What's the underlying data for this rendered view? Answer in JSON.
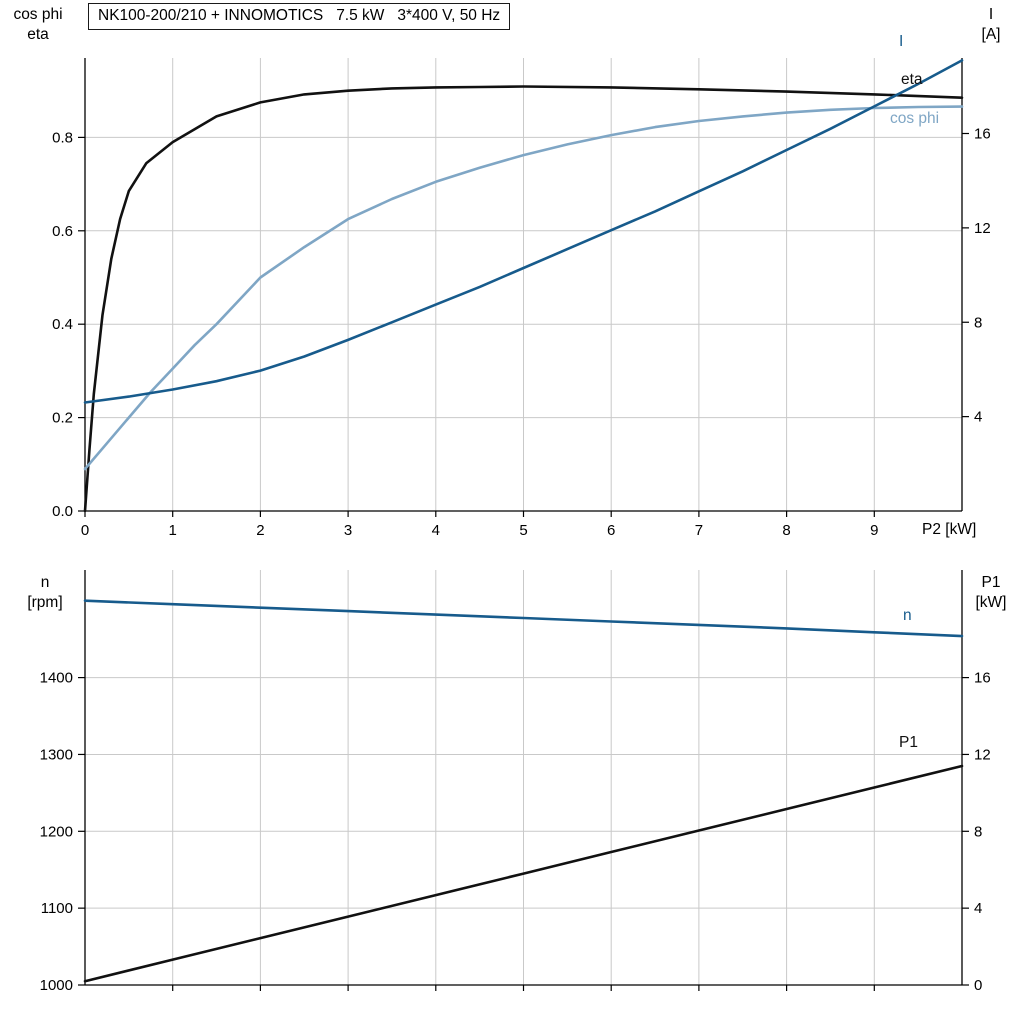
{
  "title_box": {
    "text": "NK100-200/210 + INNOMOTICS   7.5 kW   3*400 V, 50 Hz"
  },
  "colors": {
    "eta": "#111111",
    "cos_phi": "#7fa6c5",
    "current": "#175b8c",
    "speed": "#175b8c",
    "p1": "#111111",
    "grid": "#c9c9c9",
    "axis": "#000000"
  },
  "axis_labels": {
    "top_left": [
      "cos phi",
      "eta"
    ],
    "top_right": [
      "I",
      "[A]"
    ],
    "bottom_left": [
      "n",
      "[rpm]"
    ],
    "bottom_right": [
      "P1",
      "[kW]"
    ],
    "x_axis": "P2 [kW]"
  },
  "series_labels": {
    "current": "I",
    "eta": "eta",
    "cos_phi": "cos phi",
    "speed": "n",
    "p1": "P1"
  },
  "chart_data": [
    {
      "id": "top",
      "type": "line",
      "title": "NK100-200/210 + INNOMOTICS   7.5 kW   3*400 V, 50 Hz",
      "xlabel": "P2 [kW]",
      "ylabel_left": "cos phi / eta",
      "ylabel_right": "I [A]",
      "xlim": [
        0,
        10
      ],
      "x_ticks": [
        0,
        1,
        2,
        3,
        4,
        5,
        6,
        7,
        8,
        9
      ],
      "x_tick_labels": [
        "0",
        "1",
        "2",
        "3",
        "4",
        "5",
        "6",
        "7",
        "8",
        "9"
      ],
      "ylim_left": [
        0,
        0.97
      ],
      "y_ticks_left": [
        0,
        0.2,
        0.4,
        0.6,
        0.8
      ],
      "y_tick_labels_left": [
        "0.0",
        "0.2",
        "0.4",
        "0.6",
        "0.8"
      ],
      "ylim_right": [
        0,
        19.2
      ],
      "y_ticks_right": [
        4,
        8,
        12,
        16
      ],
      "y_tick_labels_right": [
        "4",
        "8",
        "12",
        "16"
      ],
      "grid_x": [
        1,
        2,
        3,
        4,
        5,
        6,
        7,
        8,
        9
      ],
      "grid_y_left": [
        0.2,
        0.4,
        0.6,
        0.8
      ],
      "series": [
        {
          "name": "eta",
          "axis": "left",
          "color_key": "eta",
          "x": [
            0,
            0.05,
            0.1,
            0.2,
            0.3,
            0.4,
            0.5,
            0.7,
            1,
            1.5,
            2,
            2.5,
            3,
            3.5,
            4,
            4.5,
            5,
            6,
            7,
            8,
            9,
            10
          ],
          "values": [
            0,
            0.13,
            0.25,
            0.42,
            0.54,
            0.625,
            0.685,
            0.745,
            0.79,
            0.845,
            0.875,
            0.892,
            0.9,
            0.905,
            0.907,
            0.908,
            0.909,
            0.907,
            0.903,
            0.898,
            0.892,
            0.885
          ]
        },
        {
          "name": "cos phi",
          "axis": "left",
          "color_key": "cos_phi",
          "x": [
            0,
            0.25,
            0.5,
            0.75,
            1,
            1.25,
            1.5,
            2,
            2.5,
            3,
            3.5,
            4,
            4.5,
            5,
            5.5,
            6,
            6.5,
            7,
            7.5,
            8,
            8.5,
            9,
            9.5,
            10
          ],
          "values": [
            0.09,
            0.145,
            0.2,
            0.255,
            0.305,
            0.355,
            0.4,
            0.5,
            0.565,
            0.625,
            0.668,
            0.705,
            0.735,
            0.762,
            0.785,
            0.805,
            0.822,
            0.835,
            0.845,
            0.853,
            0.859,
            0.863,
            0.865,
            0.866
          ]
        },
        {
          "name": "I",
          "axis": "right",
          "color_key": "current",
          "x": [
            0,
            0.5,
            1,
            1.5,
            2,
            2.5,
            3,
            3.5,
            4,
            4.5,
            5,
            5.5,
            6,
            6.5,
            7,
            7.5,
            8,
            8.5,
            9,
            9.5,
            10
          ],
          "values": [
            4.6,
            4.85,
            5.15,
            5.5,
            5.95,
            6.55,
            7.25,
            8,
            8.75,
            9.5,
            10.3,
            11.1,
            11.9,
            12.7,
            13.55,
            14.4,
            15.3,
            16.2,
            17.15,
            18.1,
            19.1
          ]
        }
      ]
    },
    {
      "id": "bottom",
      "type": "line",
      "title": "",
      "xlabel": "",
      "ylabel_left": "n [rpm]",
      "ylabel_right": "P1 [kW]",
      "xlim": [
        0,
        10
      ],
      "x_ticks": [
        1,
        2,
        3,
        4,
        5,
        6,
        7,
        8,
        9
      ],
      "x_tick_labels": [],
      "ylim_left": [
        1000,
        1540
      ],
      "y_ticks_left": [
        1000,
        1100,
        1200,
        1300,
        1400
      ],
      "y_tick_labels_left": [
        "1000",
        "1100",
        "1200",
        "1300",
        "1400"
      ],
      "ylim_right": [
        0,
        21.6
      ],
      "y_ticks_right": [
        0,
        4,
        8,
        12,
        16
      ],
      "y_tick_labels_right": [
        "0",
        "4",
        "8",
        "12",
        "16"
      ],
      "grid_x": [
        1,
        2,
        3,
        4,
        5,
        6,
        7,
        8,
        9
      ],
      "grid_y_left": [
        1100,
        1200,
        1300,
        1400
      ],
      "series": [
        {
          "name": "n",
          "axis": "left",
          "color_key": "speed",
          "x": [
            0,
            1,
            2,
            3,
            4,
            5,
            6,
            7,
            8,
            9,
            10
          ],
          "values": [
            1500,
            1495.5,
            1491,
            1486.5,
            1482,
            1477.5,
            1473,
            1468.5,
            1464,
            1459,
            1454
          ]
        },
        {
          "name": "P1",
          "axis": "right",
          "color_key": "p1",
          "x": [
            0,
            1,
            2,
            3,
            4,
            5,
            6,
            7,
            8,
            9,
            10
          ],
          "values": [
            0.2,
            1.32,
            2.44,
            3.56,
            4.68,
            5.8,
            6.92,
            8.04,
            9.16,
            10.28,
            11.4
          ]
        }
      ]
    }
  ]
}
